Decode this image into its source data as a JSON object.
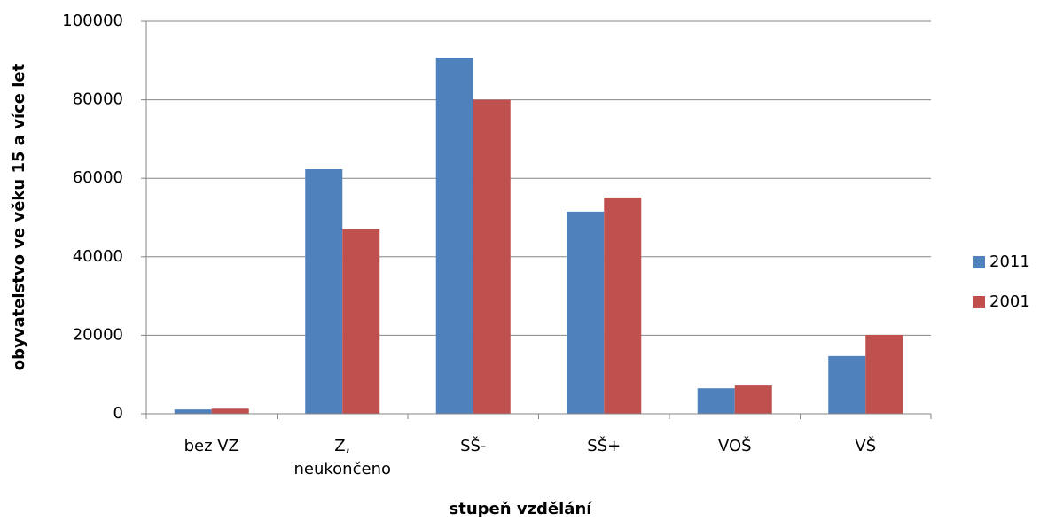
{
  "chart_data": {
    "type": "bar",
    "x_label": "stupeň vzdělání",
    "y_label": "obyvatelstvo ve věku 15 a více let",
    "categories": [
      "bez VZ",
      "Z, neukončeno",
      "SŠ-",
      "SŠ+",
      "VOŠ",
      "VŠ"
    ],
    "series": [
      {
        "name": "2011",
        "color": "#4f81bd",
        "values": [
          1100,
          62300,
          90700,
          51500,
          6500,
          14700
        ]
      },
      {
        "name": "2001",
        "color": "#c0504d",
        "values": [
          1300,
          47000,
          80000,
          55100,
          7200,
          20100
        ]
      }
    ],
    "ylim": [
      0,
      100000
    ],
    "yticks": [
      0,
      20000,
      40000,
      60000,
      80000,
      100000
    ],
    "grid": true,
    "legend": "right"
  }
}
